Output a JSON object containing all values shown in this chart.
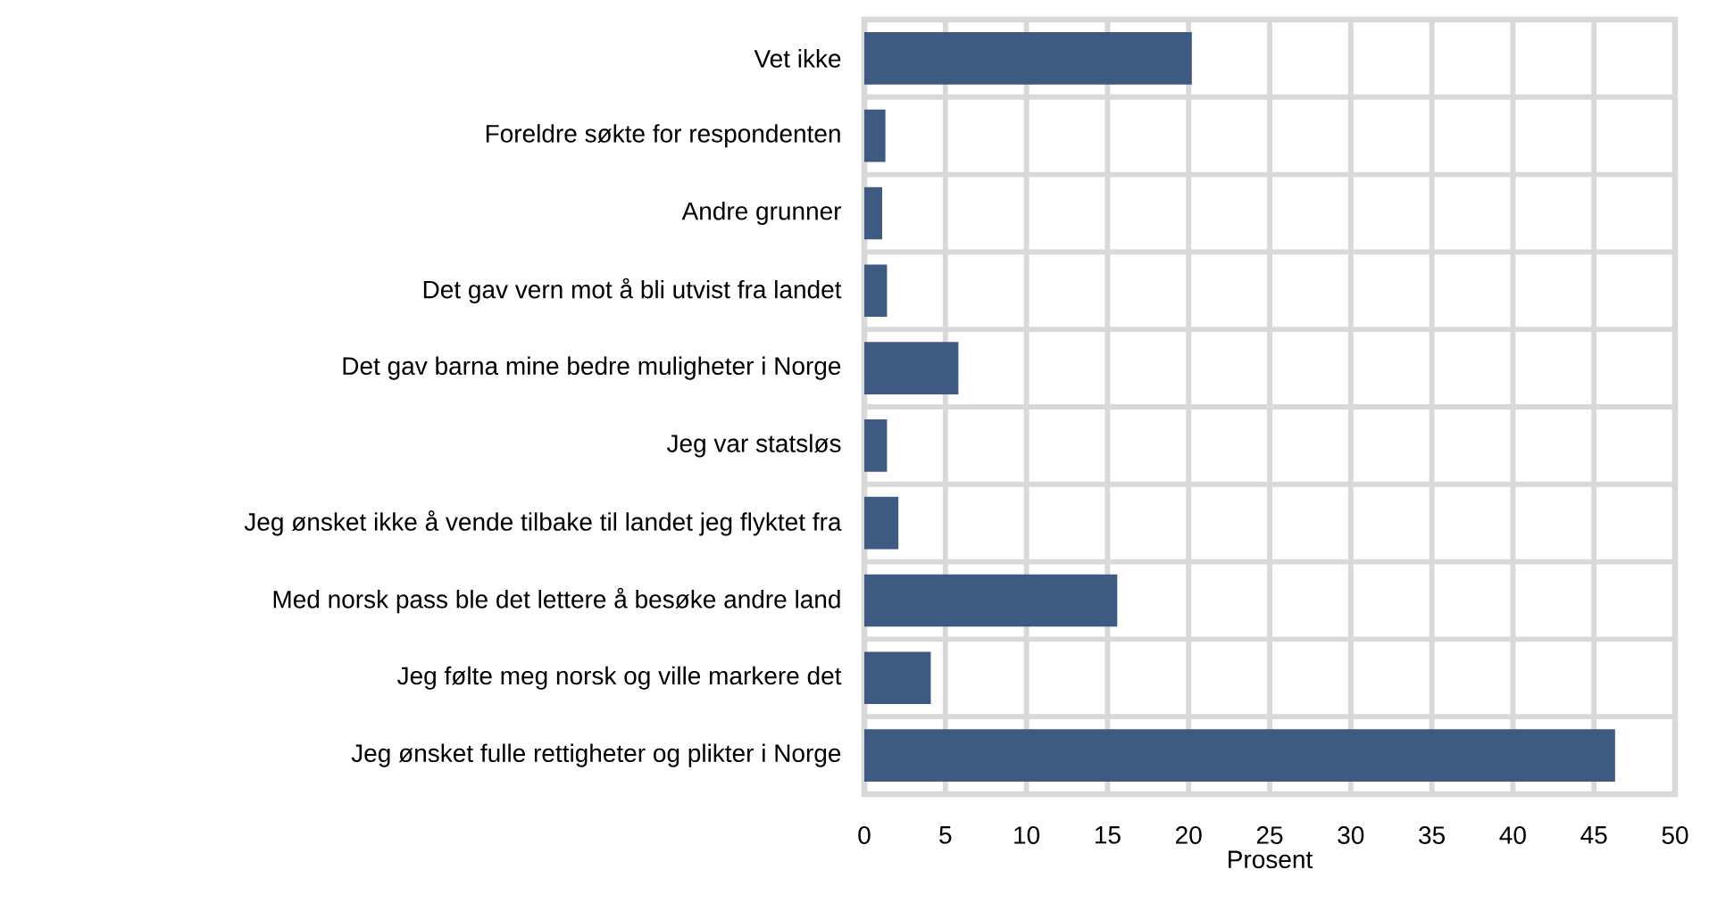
{
  "chart_data": {
    "type": "bar",
    "orientation": "horizontal",
    "xlabel": "Prosent",
    "categories": [
      "Vet ikke",
      "Foreldre søkte for respondenten",
      "Andre grunner",
      "Det gav vern mot å bli utvist fra landet",
      "Det gav barna mine bedre muligheter i Norge",
      "Jeg var statsløs",
      "Jeg ønsket ikke å vende tilbake til landet jeg flyktet fra",
      "Med norsk pass ble det lettere å besøke andre land",
      "Jeg følte meg norsk og ville markere det",
      "Jeg ønsket fulle rettigheter og plikter i Norge"
    ],
    "values": [
      20.2,
      1.3,
      1.1,
      1.4,
      5.8,
      1.4,
      2.1,
      15.6,
      4.1,
      46.3
    ],
    "color": "#3f5a80",
    "xlim": [
      0,
      50
    ],
    "xticks": [
      0,
      5,
      10,
      15,
      20,
      25,
      30,
      35,
      40,
      45,
      50
    ],
    "grid": true
  }
}
